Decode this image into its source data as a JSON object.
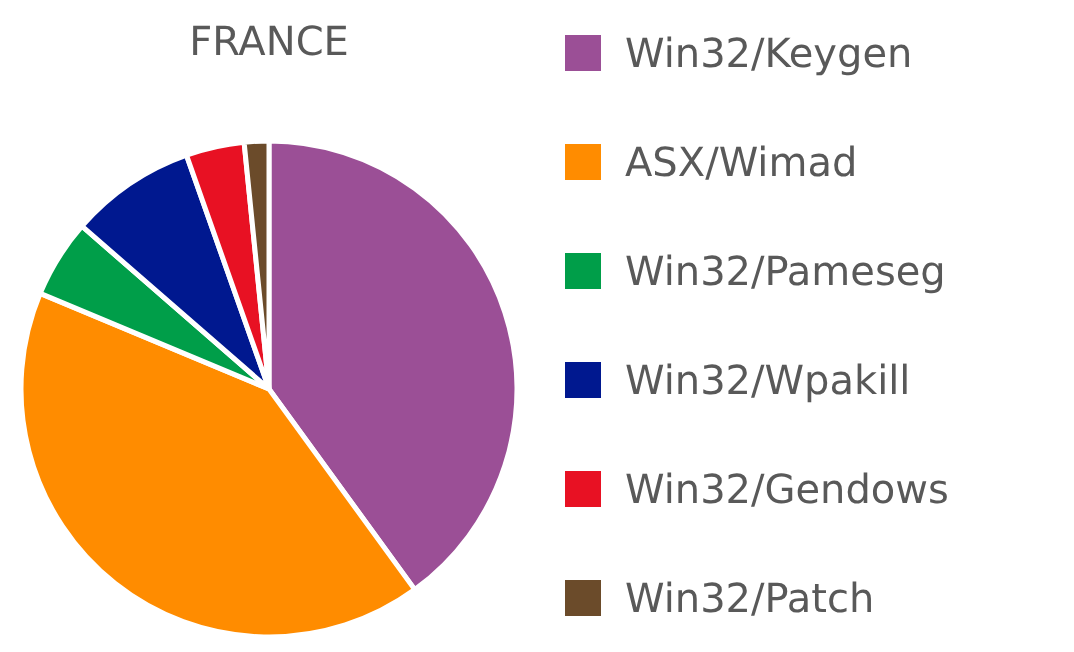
{
  "chart_data": {
    "type": "pie",
    "title": "FRANCE",
    "categories": [
      "Win32/Keygen",
      "ASX/Wimad",
      "Win32/Pameseg",
      "Win32/Wpakill",
      "Win32/Gendows",
      "Win32/Patch"
    ],
    "values": [
      40,
      41.3,
      5.1,
      8.2,
      3.8,
      1.6
    ],
    "colors": [
      "#9b4f96",
      "#ff8c00",
      "#009e49",
      "#00188f",
      "#e81123",
      "#6b4b2a"
    ],
    "legend": "right"
  }
}
